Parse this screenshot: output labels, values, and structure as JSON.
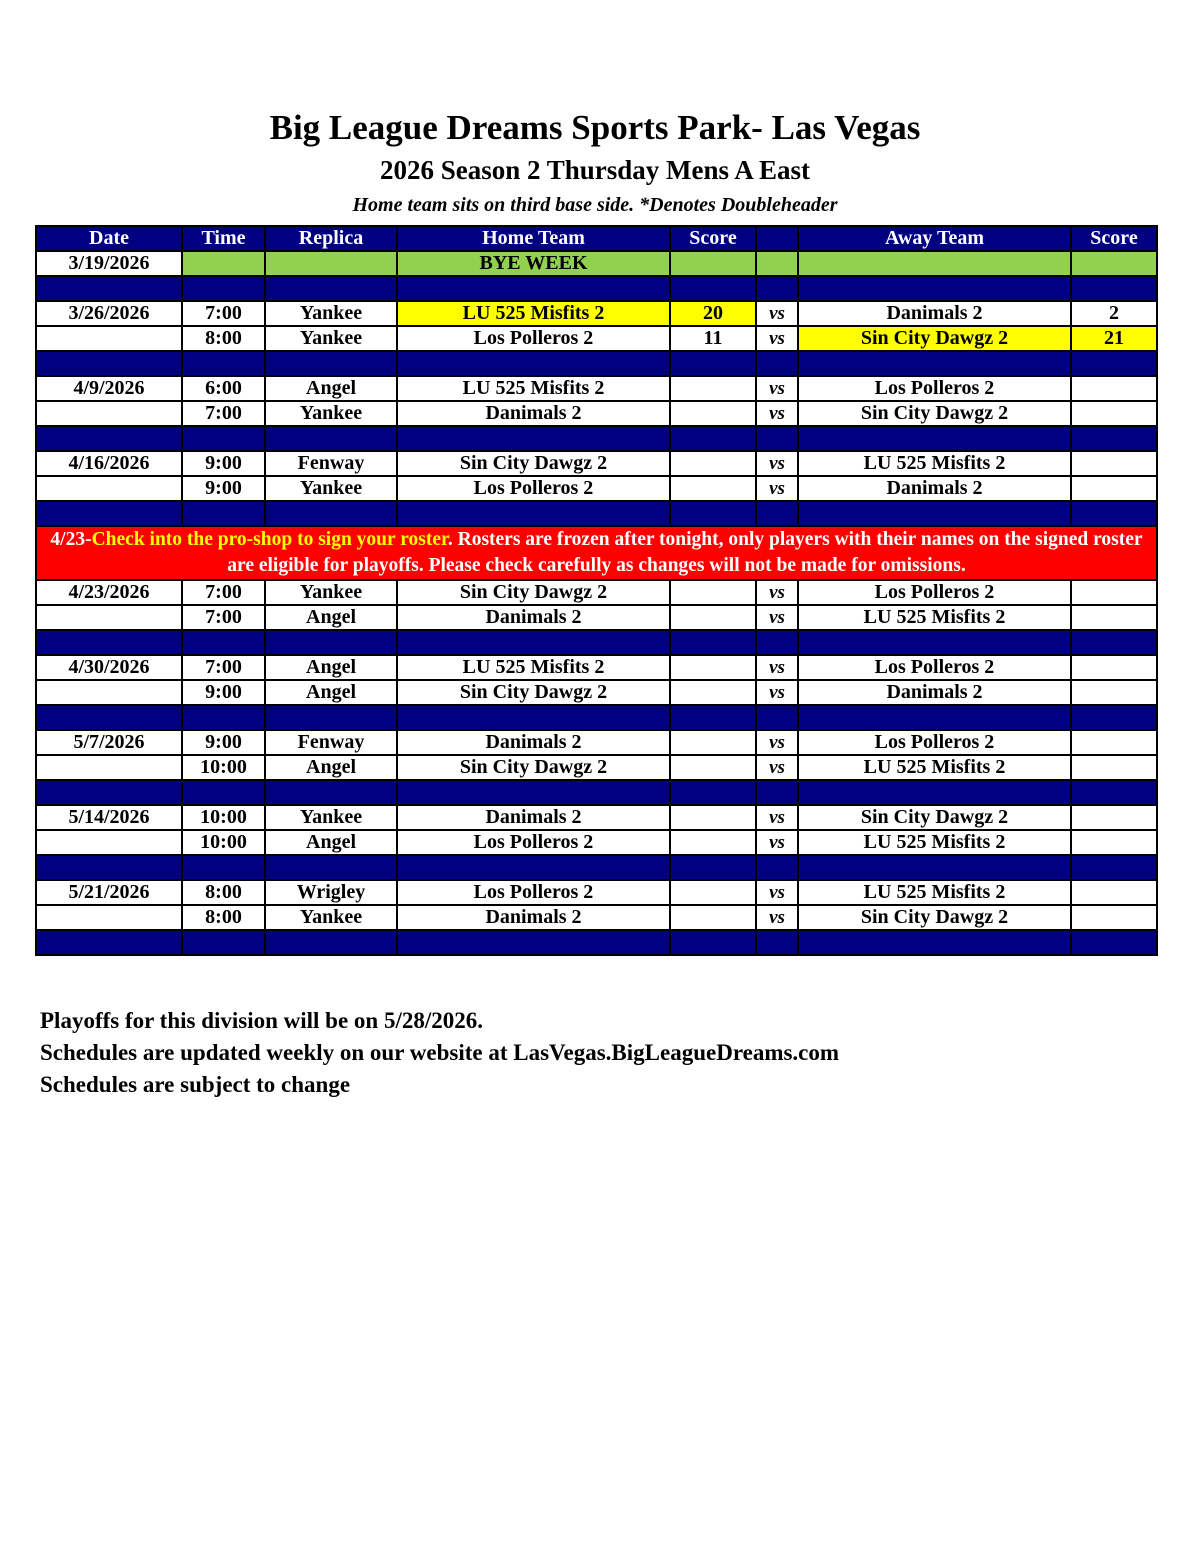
{
  "header": {
    "title": "Big League Dreams Sports Park- Las Vegas",
    "subtitle": "2026  Season 2 Thursday Mens A East",
    "note": "Home team sits on third base side.  *Denotes Doubleheader"
  },
  "columns": [
    "Date",
    "Time",
    "Replica",
    "Home Team",
    "Score",
    "",
    "Away Team",
    "Score"
  ],
  "colors": {
    "header": "#000080",
    "bye": "#92d050",
    "winner": "#ffff00",
    "banner": "#ff0000"
  },
  "rows": [
    {
      "type": "bye",
      "date": "3/19/2026",
      "label": "BYE WEEK"
    },
    {
      "type": "sep"
    },
    {
      "type": "game",
      "date": "3/26/2026",
      "time": "7:00",
      "field": "Yankee",
      "home": "LU 525 Misfits 2",
      "home_score": "20",
      "vs": "vs",
      "away": "Danimals 2",
      "away_score": "2",
      "winner": "home"
    },
    {
      "type": "game",
      "date": "",
      "time": "8:00",
      "field": "Yankee",
      "home": "Los Polleros 2",
      "home_score": "11",
      "vs": "vs",
      "away": "Sin City Dawgz 2",
      "away_score": "21",
      "winner": "away"
    },
    {
      "type": "sep"
    },
    {
      "type": "game",
      "date": "4/9/2026",
      "time": "6:00",
      "field": "Angel",
      "home": "LU 525 Misfits 2",
      "home_score": "",
      "vs": "vs",
      "away": "Los Polleros 2",
      "away_score": ""
    },
    {
      "type": "game",
      "date": "",
      "time": "7:00",
      "field": "Yankee",
      "home": "Danimals 2",
      "home_score": "",
      "vs": "vs",
      "away": "Sin City Dawgz 2",
      "away_score": ""
    },
    {
      "type": "sep"
    },
    {
      "type": "game",
      "date": "4/16/2026",
      "time": "9:00",
      "field": "Fenway",
      "home": "Sin City Dawgz 2",
      "home_score": "",
      "vs": "vs",
      "away": "LU 525 Misfits 2",
      "away_score": ""
    },
    {
      "type": "game",
      "date": "",
      "time": "9:00",
      "field": "Yankee",
      "home": "Los Polleros 2",
      "home_score": "",
      "vs": "vs",
      "away": "Danimals 2",
      "away_score": ""
    },
    {
      "type": "sep"
    },
    {
      "type": "banner",
      "prefix": "4/23-",
      "highlight": "Check into the pro-shop to sign your roster",
      "rest": ". Rosters are frozen after tonight, only players with their names on the signed roster are eligible for playoffs. Please check carefully as changes will not be made for omissions."
    },
    {
      "type": "game",
      "date": "4/23/2026",
      "time": "7:00",
      "field": "Yankee",
      "home": "Sin City Dawgz 2",
      "home_score": "",
      "vs": "vs",
      "away": "Los Polleros 2",
      "away_score": ""
    },
    {
      "type": "game",
      "date": "",
      "time": "7:00",
      "field": "Angel",
      "home": "Danimals 2",
      "home_score": "",
      "vs": "vs",
      "away": "LU 525 Misfits 2",
      "away_score": ""
    },
    {
      "type": "sep"
    },
    {
      "type": "game",
      "date": "4/30/2026",
      "time": "7:00",
      "field": "Angel",
      "home": "LU 525 Misfits 2",
      "home_score": "",
      "vs": "vs",
      "away": "Los Polleros 2",
      "away_score": ""
    },
    {
      "type": "game",
      "date": "",
      "time": "9:00",
      "field": "Angel",
      "home": "Sin City Dawgz 2",
      "home_score": "",
      "vs": "vs",
      "away": "Danimals 2",
      "away_score": ""
    },
    {
      "type": "sep"
    },
    {
      "type": "game",
      "date": "5/7/2026",
      "time": "9:00",
      "field": "Fenway",
      "home": "Danimals 2",
      "home_score": "",
      "vs": "vs",
      "away": "Los Polleros 2",
      "away_score": ""
    },
    {
      "type": "game",
      "date": "",
      "time": "10:00",
      "field": "Angel",
      "home": "Sin City Dawgz 2",
      "home_score": "",
      "vs": "vs",
      "away": "LU 525 Misfits 2",
      "away_score": ""
    },
    {
      "type": "sep"
    },
    {
      "type": "game",
      "date": "5/14/2026",
      "time": "10:00",
      "field": "Yankee",
      "home": "Danimals 2",
      "home_score": "",
      "vs": "vs",
      "away": "Sin City Dawgz 2",
      "away_score": ""
    },
    {
      "type": "game",
      "date": "",
      "time": "10:00",
      "field": "Angel",
      "home": "Los Polleros 2",
      "home_score": "",
      "vs": "vs",
      "away": "LU 525 Misfits 2",
      "away_score": ""
    },
    {
      "type": "sep"
    },
    {
      "type": "game",
      "date": "5/21/2026",
      "time": "8:00",
      "field": "Wrigley",
      "home": "Los Polleros 2",
      "home_score": "",
      "vs": "vs",
      "away": "LU 525 Misfits 2",
      "away_score": ""
    },
    {
      "type": "game",
      "date": "",
      "time": "8:00",
      "field": "Yankee",
      "home": "Danimals 2",
      "home_score": "",
      "vs": "vs",
      "away": "Sin City Dawgz 2",
      "away_score": ""
    },
    {
      "type": "sep"
    }
  ],
  "footer": [
    "Playoffs for this division will be on 5/28/2026.",
    "Schedules are updated weekly on our website at LasVegas.BigLeagueDreams.com",
    "Schedules are subject to change"
  ]
}
